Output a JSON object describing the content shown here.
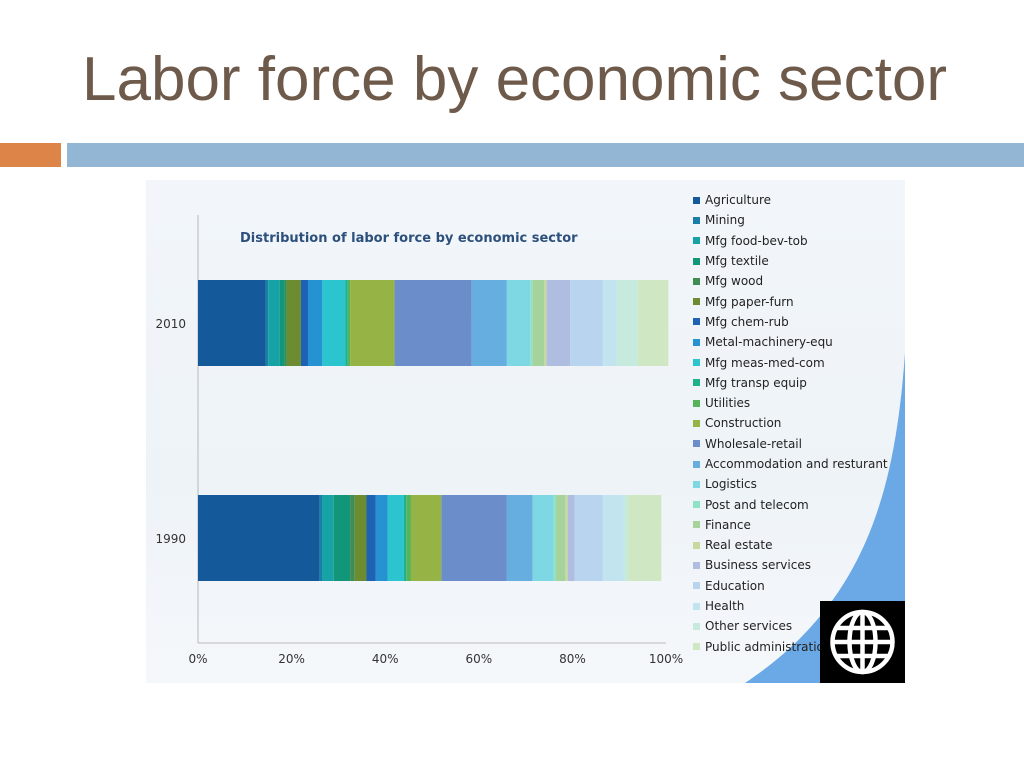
{
  "slide": {
    "title": "Labor force by economic sector",
    "accent_colors": {
      "orange": "#dd8449",
      "blue": "#93b6d5"
    }
  },
  "logo": {
    "icon": "globe-icon"
  },
  "chart_data": {
    "type": "bar",
    "orientation": "horizontal",
    "stacked": true,
    "title": "Distribution of labor force by economic sector",
    "categories": [
      "2010",
      "1990"
    ],
    "xlim": [
      0,
      100
    ],
    "xticks": [
      "0%",
      "20%",
      "40%",
      "60%",
      "80%",
      "100%"
    ],
    "legend_position": "right",
    "series": [
      {
        "name": "Agriculture",
        "color": "#145a9a",
        "values": [
          14.5,
          26
        ]
      },
      {
        "name": "Mining",
        "color": "#1a7fa8",
        "values": [
          0.5,
          0.5
        ]
      },
      {
        "name": "Mfg food-bev-tob",
        "color": "#17a3a6",
        "values": [
          2.5,
          2.5
        ]
      },
      {
        "name": "Mfg textile",
        "color": "#12967a",
        "values": [
          1,
          3.5
        ]
      },
      {
        "name": "Mfg wood",
        "color": "#3f8d55",
        "values": [
          0.5,
          1
        ]
      },
      {
        "name": "Mfg paper-furn",
        "color": "#6d8c32",
        "values": [
          3,
          2.5
        ]
      },
      {
        "name": "Mfg chem-rub",
        "color": "#1d62b5",
        "values": [
          1.5,
          2
        ]
      },
      {
        "name": "Metal-machinery-equ",
        "color": "#2692d2",
        "values": [
          3,
          2.5
        ]
      },
      {
        "name": "Mfg meas-med-com",
        "color": "#2cc4cf",
        "values": [
          5,
          3.5
        ]
      },
      {
        "name": "Mfg transp equip",
        "color": "#1db28a",
        "values": [
          0.5,
          0.5
        ]
      },
      {
        "name": "Utilities",
        "color": "#55b35a",
        "values": [
          0.5,
          1
        ]
      },
      {
        "name": "Construction",
        "color": "#96b446",
        "values": [
          9.5,
          6.5
        ]
      },
      {
        "name": "Wholesale-retail",
        "color": "#6b8ecb",
        "values": [
          16.5,
          14
        ]
      },
      {
        "name": "Accommodation and resturant",
        "color": "#66aee0",
        "values": [
          7.5,
          5.5
        ]
      },
      {
        "name": "Logistics",
        "color": "#7dd8e3",
        "values": [
          5,
          4.5
        ]
      },
      {
        "name": "Post and telecom",
        "color": "#8fe2c6",
        "values": [
          0.5,
          0.5
        ]
      },
      {
        "name": "Finance",
        "color": "#a6d39b",
        "values": [
          2.5,
          2
        ]
      },
      {
        "name": "Real estate",
        "color": "#c7d99d",
        "values": [
          0.5,
          0.5
        ]
      },
      {
        "name": "Business services",
        "color": "#aebde0",
        "values": [
          5,
          1.5
        ]
      },
      {
        "name": "Education",
        "color": "#b9d4ef",
        "values": [
          7,
          6
        ]
      },
      {
        "name": "Health",
        "color": "#c2e4ef",
        "values": [
          3,
          4.5
        ]
      },
      {
        "name": "Other services",
        "color": "#c6eadd",
        "values": [
          4.5,
          1
        ]
      },
      {
        "name": "Public administration",
        "color": "#cfe7c2",
        "values": [
          6.5,
          7
        ]
      }
    ]
  }
}
